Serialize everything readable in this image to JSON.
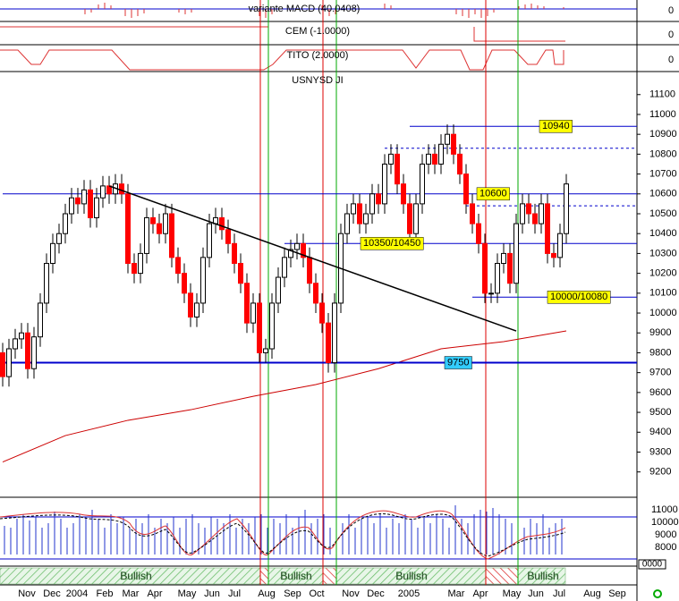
{
  "chart_data": {
    "type": "candlestick",
    "instrument": "USNYSD JI",
    "indicators": {
      "macd": "variante MACD (40.0408)",
      "cem": "CEM (-1.0000)",
      "tito": "TITO (2.0000)",
      "zero": "0"
    },
    "open": [
      9800,
      9680,
      9820,
      9870,
      9900,
      9720,
      9880,
      10050,
      10250,
      10350,
      10400,
      10500,
      10580,
      10550,
      10620,
      10480,
      10580,
      10640,
      10600,
      10650,
      10600,
      10250,
      10200,
      10300,
      10480,
      10450,
      10400,
      10500,
      10280,
      10200,
      10100,
      9980,
      10050,
      10280,
      10450,
      10480,
      10420,
      10350,
      10250,
      10150,
      9950,
      10050,
      9800,
      9820,
      10050,
      10180,
      10280,
      10320,
      10350,
      10280,
      10150,
      10050,
      9950,
      9750,
      10050,
      10400,
      10500,
      10550,
      10450,
      10500,
      10600,
      10550,
      10750,
      10800,
      10650,
      10550,
      10400,
      10550,
      10750,
      10800,
      10750,
      10850,
      10900,
      10800,
      10700,
      10550,
      10450,
      10350,
      10100,
      10100,
      10250,
      10300,
      10150,
      10450,
      10550,
      10500,
      10450,
      10550,
      10300,
      10280,
      10400
    ],
    "high": [
      9850,
      9870,
      9920,
      9950,
      9950,
      9930,
      10100,
      10300,
      10400,
      10450,
      10550,
      10630,
      10630,
      10670,
      10670,
      10630,
      10690,
      10690,
      10700,
      10700,
      10650,
      10300,
      10350,
      10530,
      10530,
      10500,
      10550,
      10550,
      10330,
      10250,
      10150,
      10100,
      10330,
      10500,
      10530,
      10530,
      10470,
      10400,
      10300,
      10200,
      10100,
      10100,
      9870,
      10100,
      10230,
      10330,
      10370,
      10400,
      10400,
      10330,
      10200,
      10100,
      10000,
      10100,
      10450,
      10550,
      10600,
      10600,
      10550,
      10650,
      10650,
      10800,
      10850,
      10850,
      10700,
      10600,
      10600,
      10800,
      10850,
      10850,
      10900,
      10950,
      10950,
      10850,
      10750,
      10600,
      10500,
      10400,
      10150,
      10300,
      10350,
      10350,
      10500,
      10600,
      10600,
      10550,
      10600,
      10600,
      10350,
      10450,
      10700
    ],
    "low": [
      9630,
      9630,
      9770,
      9820,
      9670,
      9670,
      9830,
      10000,
      10200,
      10300,
      10350,
      10450,
      10500,
      10500,
      10430,
      10430,
      10530,
      10550,
      10550,
      10550,
      10200,
      10150,
      10150,
      10250,
      10400,
      10350,
      10350,
      10230,
      10150,
      10050,
      9930,
      9930,
      10000,
      10230,
      10400,
      10370,
      10300,
      10200,
      10100,
      9900,
      9900,
      9750,
      9750,
      9770,
      10000,
      10130,
      10230,
      10270,
      10230,
      10100,
      10000,
      9900,
      9700,
      9700,
      10000,
      10350,
      10450,
      10400,
      10400,
      10450,
      10500,
      10500,
      10700,
      10600,
      10500,
      10350,
      10350,
      10500,
      10700,
      10700,
      10700,
      10800,
      10750,
      10650,
      10500,
      10400,
      10300,
      10050,
      10050,
      10050,
      10200,
      10100,
      10100,
      10400,
      10450,
      10400,
      10400,
      10250,
      10230,
      10230,
      10350
    ],
    "close": [
      9680,
      9820,
      9870,
      9900,
      9720,
      9880,
      10050,
      10250,
      10350,
      10400,
      10500,
      10580,
      10550,
      10620,
      10480,
      10580,
      10640,
      10600,
      10650,
      10600,
      10250,
      10200,
      10300,
      10480,
      10450,
      10400,
      10500,
      10280,
      10200,
      10100,
      9980,
      10050,
      10280,
      10450,
      10480,
      10420,
      10350,
      10250,
      10150,
      9950,
      10050,
      9800,
      9820,
      10050,
      10180,
      10280,
      10320,
      10350,
      10280,
      10150,
      10050,
      9950,
      9750,
      10050,
      10400,
      10500,
      10550,
      10450,
      10500,
      10600,
      10550,
      10750,
      10800,
      10650,
      10550,
      10400,
      10550,
      10750,
      10800,
      10750,
      10850,
      10900,
      10800,
      10700,
      10550,
      10450,
      10350,
      10100,
      10100,
      10250,
      10300,
      10150,
      10450,
      10550,
      10500,
      10450,
      10550,
      10300,
      10280,
      10400,
      10650
    ],
    "up_color": "#ffffff",
    "down_color": "#ff0000",
    "moving_average": {
      "color": "#cc0000",
      "index": [
        0,
        10,
        20,
        30,
        40,
        50,
        60,
        70,
        80,
        90
      ],
      "values": [
        9250,
        9383,
        9460,
        9513,
        9581,
        9640,
        9720,
        9820,
        9856,
        9910
      ]
    },
    "trendline": {
      "index": [
        17,
        82
      ],
      "values": [
        10640,
        9910
      ],
      "color": "#000000"
    },
    "levels": [
      {
        "value": 10940,
        "label": "10940",
        "from": 65,
        "color": "#0000cc",
        "box": "#ffff00"
      },
      {
        "value": 10600,
        "label": "10600",
        "from": 0,
        "color": "#0000cc",
        "box": "#ffff00"
      },
      {
        "value": 10350,
        "label": "10350/10450",
        "from": 45,
        "color": "#0000cc",
        "box": "#ffff00"
      },
      {
        "value": 10080,
        "label": "10000/10080",
        "from": 75,
        "color": "#0000cc",
        "box": "#ffff00"
      },
      {
        "value": 9750,
        "label": "9750",
        "from": 0,
        "color": "#0000cc",
        "box": "#33ccff"
      }
    ],
    "dashed_levels": [
      {
        "value": 10830,
        "from": 61
      },
      {
        "value": 10540,
        "from": 74
      }
    ],
    "ylim": [
      9077,
      11207
    ],
    "yticks": [
      11100,
      11000,
      10900,
      10800,
      10700,
      10600,
      10500,
      10400,
      10300,
      10200,
      10100,
      10000,
      9900,
      9800,
      9700,
      9600,
      9500,
      9400,
      9300,
      9200
    ],
    "lower_panel": {
      "labels": [
        "11000",
        "10000",
        "9000",
        "8000"
      ],
      "box_label": "0000"
    },
    "signal": "Bullish",
    "x_labels": [
      "Nov",
      "Dec",
      "2004",
      "Feb",
      "Mar",
      "Apr",
      "May",
      "Jun",
      "Jul",
      "Aug",
      "Sep",
      "Oct",
      "Nov",
      "Dec",
      "2005",
      "Mar",
      "Apr",
      "May",
      "Jun",
      "Jul",
      "Aug",
      "Sep"
    ]
  }
}
